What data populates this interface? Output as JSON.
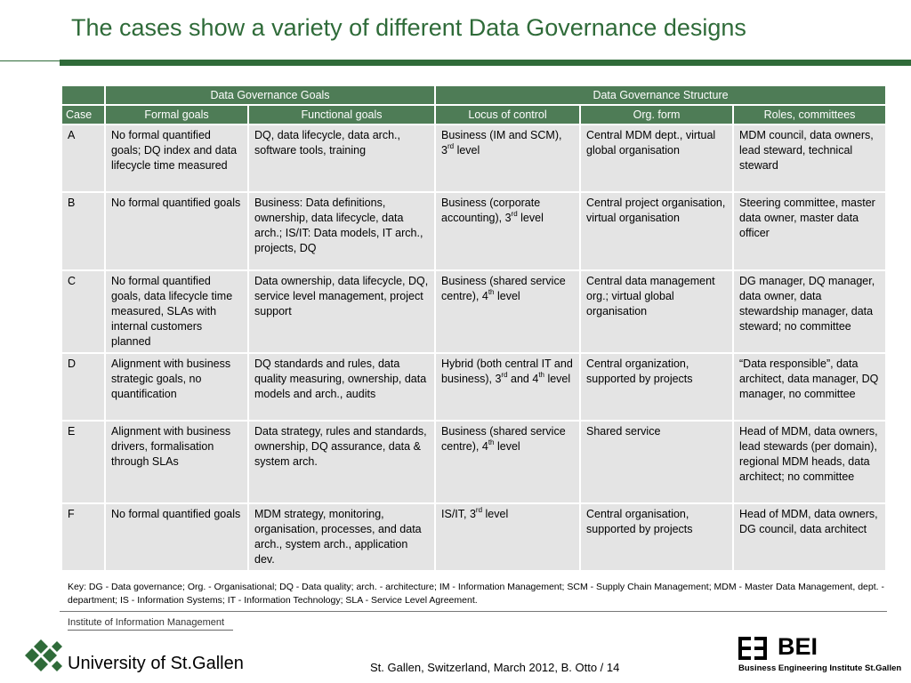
{
  "slide": {
    "title": "The cases show a variety of different Data Governance designs"
  },
  "table": {
    "group_headers": {
      "goals": "Data Governance Goals",
      "structure": "Data Governance Structure"
    },
    "column_headers": {
      "case": "Case",
      "formal": "Formal goals",
      "functional": "Functional goals",
      "locus": "Locus of control",
      "org": "Org. form",
      "roles": "Roles, committees"
    },
    "rows": [
      {
        "case": "A",
        "formal": "No formal quantified goals; DQ index and data lifecycle time measured",
        "functional": "DQ, data lifecycle, data arch., software tools, training",
        "locus_pre": "Business (IM and SCM), 3",
        "locus_sup": "rd",
        "locus_post": " level",
        "org": "Central MDM dept., virtual global organisation",
        "roles": "MDM council, data owners, lead steward, technical steward"
      },
      {
        "case": "B",
        "formal": "No formal quantified goals",
        "functional": "Business: Data definitions, ownership, data lifecycle, data arch.; IS/IT: Data models, IT arch., projects, DQ",
        "locus_pre": "Business (corporate accounting), 3",
        "locus_sup": "rd",
        "locus_post": " level",
        "org": "Central project organisation, virtual organisation",
        "roles": "Steering committee, master data owner, master data officer"
      },
      {
        "case": "C",
        "formal": "No formal quantified goals, data lifecycle time measured, SLAs with internal customers planned",
        "functional": "Data ownership, data lifecycle, DQ, service level management, project support",
        "locus_pre": "Business (shared service centre), 4",
        "locus_sup": "th",
        "locus_post": " level",
        "org": "Central data management org.; virtual global organisation",
        "roles": "DG manager, DQ manager, data owner, data stewardship manager, data steward; no committee"
      },
      {
        "case": "D",
        "formal": "Alignment with business strategic goals, no quantification",
        "functional": "DQ standards and rules, data quality measuring, ownership, data models and arch., audits",
        "locus_pre": "Hybrid (both central IT and business), 3",
        "locus_sup": "rd",
        "locus_mid": " and 4",
        "locus_sup2": "th",
        "locus_post": " level",
        "org": "Central organization, supported by projects",
        "roles": "“Data responsible”, data architect, data manager, DQ manager, no committee"
      },
      {
        "case": "E",
        "formal": "Alignment with business drivers, formalisation through SLAs",
        "functional": "Data strategy, rules and standards, ownership, DQ assurance, data & system arch.",
        "locus_pre": "Business (shared service centre), 4",
        "locus_sup": "th",
        "locus_post": " level",
        "org": "Shared service",
        "roles": "Head of MDM, data owners, lead stewards (per domain), regional MDM heads, data architect; no committee"
      },
      {
        "case": "F",
        "formal": "No formal quantified goals",
        "functional": "MDM strategy, monitoring, organisation, processes, and data arch., system arch., application dev.",
        "locus_pre": "IS/IT, 3",
        "locus_sup": "rd",
        "locus_post": " level",
        "org": "Central organisation, supported by projects",
        "roles": "Head of MDM, data owners, DG council, data architect"
      }
    ]
  },
  "key": "Key: DG - Data governance; Org. - Organisational; DQ - Data quality; arch. - architecture; IM - Information Management; SCM - Supply Chain Management; MDM - Master Data Management, dept. - department; IS - Information Systems; IT - Information Technology; SLA - Service Level Agreement.",
  "footer": {
    "institute": "Institute of Information Management",
    "university": "University of St.Gallen",
    "location_date": "St. Gallen, Switzerland, March 2012, B. Otto / 14",
    "bei_abbr": "BEI",
    "bei_name": "Business Engineering Institute St.Gallen"
  },
  "colors": {
    "accent_green": "#2f6b39",
    "header_green": "#4e7c56",
    "cell_gray": "#e4e4e4"
  },
  "icons": [
    "university-logo-icon",
    "bei-logo-icon"
  ]
}
